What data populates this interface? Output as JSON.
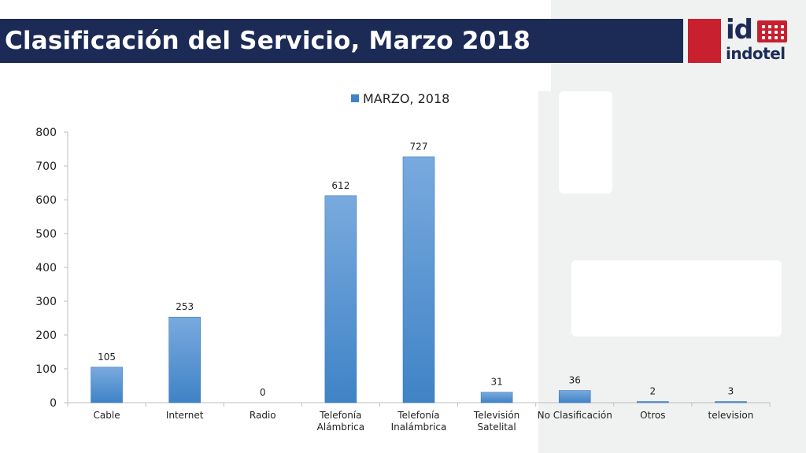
{
  "header": {
    "title": "Clasificación del Servicio, Marzo 2018",
    "logo_mark": "id",
    "logo_word": "indotel"
  },
  "colors": {
    "title_bar": "#1c2a56",
    "logo_red": "#c8202f",
    "bar_top": "#79aade",
    "bar_bottom": "#3f83c6",
    "background_panel": "#f0f1f1"
  },
  "chart_data": {
    "type": "bar",
    "categories": [
      "Cable",
      "Internet",
      "Radio",
      "Telefonía Alámbrica",
      "Telefonía Inalámbrica",
      "Televisión Satelital",
      "No Clasificación",
      "Otros",
      "television"
    ],
    "category_lines": [
      [
        "Cable"
      ],
      [
        "Internet"
      ],
      [
        "Radio"
      ],
      [
        "Telefonía",
        "Alámbrica"
      ],
      [
        "Telefonía",
        "Inalámbrica"
      ],
      [
        "Televisión",
        "Satelital"
      ],
      [
        "No Clasificación"
      ],
      [
        "Otros"
      ],
      [
        "television"
      ]
    ],
    "series": [
      {
        "name": "MARZO, 2018",
        "values": [
          105,
          253,
          0,
          612,
          727,
          31,
          36,
          2,
          3
        ]
      }
    ],
    "ylim": [
      0,
      800
    ],
    "yticks": [
      0,
      100,
      200,
      300,
      400,
      500,
      600,
      700,
      800
    ],
    "legend": "top-center",
    "grid": false,
    "data_labels": true
  }
}
